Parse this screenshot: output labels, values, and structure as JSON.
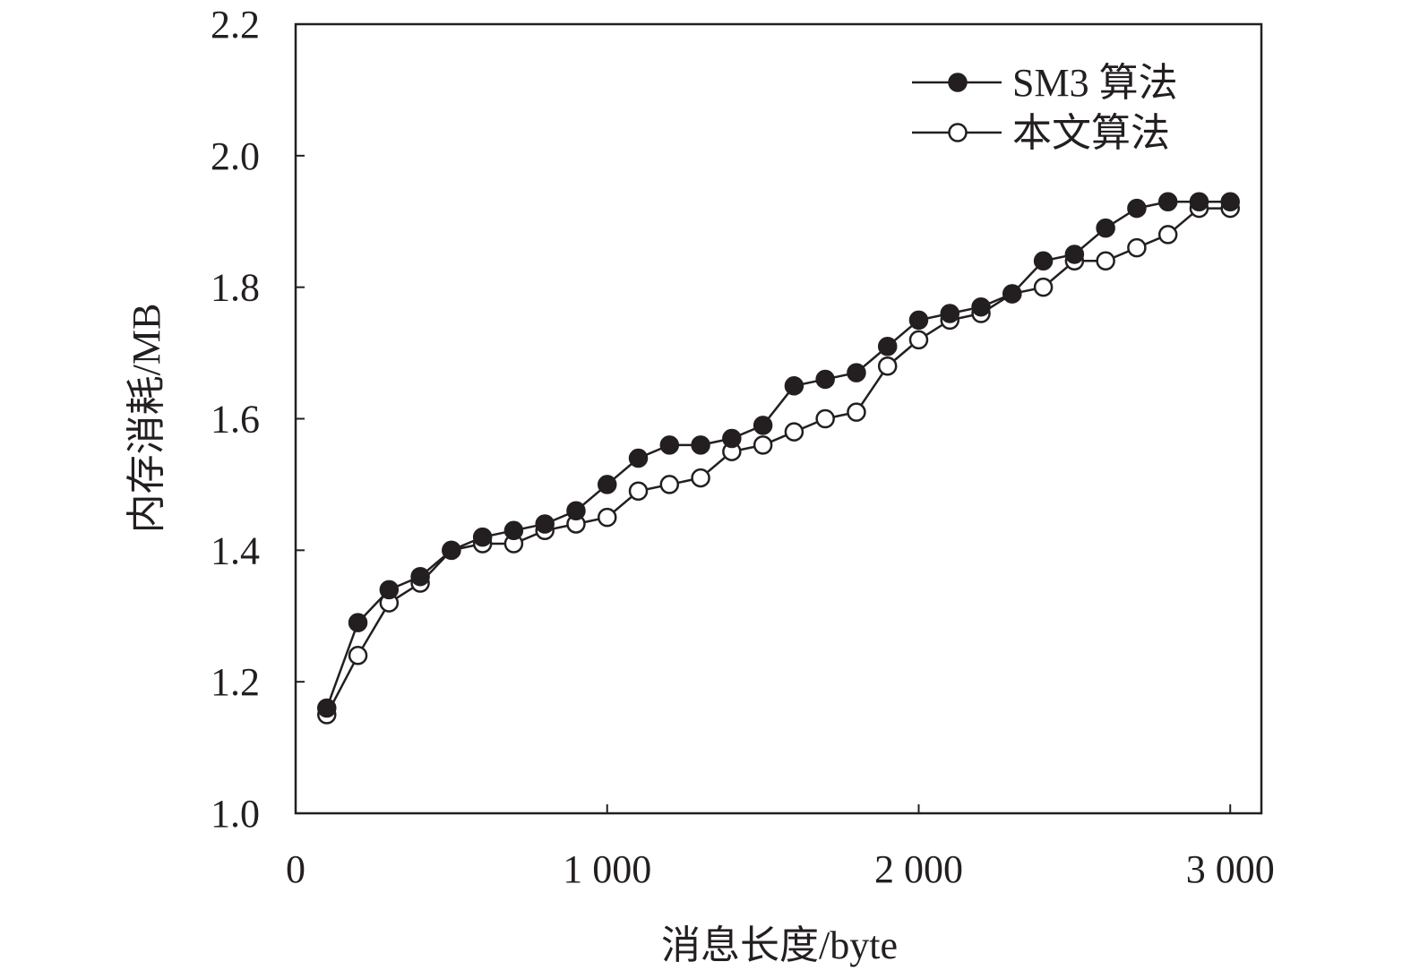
{
  "chart_data": {
    "type": "line",
    "title": "",
    "xlabel": "消息长度/byte",
    "ylabel": "内存消耗/MB",
    "xlim": [
      0,
      3100
    ],
    "ylim": [
      1.0,
      2.2
    ],
    "x_ticks": [
      0,
      1000,
      2000,
      3000
    ],
    "x_tick_labels": [
      "0",
      "1 000",
      "2 000",
      "3 000"
    ],
    "y_ticks": [
      1.0,
      1.2,
      1.4,
      1.6,
      1.8,
      2.0,
      2.2
    ],
    "y_tick_labels": [
      "1.0",
      "1.2",
      "1.4",
      "1.6",
      "1.8",
      "2.0",
      "2.2"
    ],
    "grid": false,
    "legend_position": "top-right",
    "x": [
      100,
      200,
      300,
      400,
      500,
      600,
      700,
      800,
      900,
      1000,
      1100,
      1200,
      1300,
      1400,
      1500,
      1600,
      1700,
      1800,
      1900,
      2000,
      2100,
      2200,
      2300,
      2400,
      2500,
      2600,
      2700,
      2800,
      2900,
      3000
    ],
    "series": [
      {
        "name": "SM3 算法",
        "marker": "filled-circle",
        "color": "#231f20",
        "values": [
          1.16,
          1.29,
          1.34,
          1.36,
          1.4,
          1.42,
          1.43,
          1.44,
          1.46,
          1.5,
          1.54,
          1.56,
          1.56,
          1.57,
          1.59,
          1.65,
          1.66,
          1.67,
          1.71,
          1.75,
          1.76,
          1.77,
          1.79,
          1.84,
          1.85,
          1.89,
          1.92,
          1.93,
          1.93,
          1.93
        ]
      },
      {
        "name": "本文算法",
        "marker": "open-circle",
        "color": "#231f20",
        "values": [
          1.15,
          1.24,
          1.32,
          1.35,
          1.4,
          1.41,
          1.41,
          1.43,
          1.44,
          1.45,
          1.49,
          1.5,
          1.51,
          1.55,
          1.56,
          1.58,
          1.6,
          1.61,
          1.68,
          1.72,
          1.75,
          1.76,
          1.79,
          1.8,
          1.84,
          1.84,
          1.86,
          1.88,
          1.92,
          1.92
        ]
      }
    ]
  }
}
